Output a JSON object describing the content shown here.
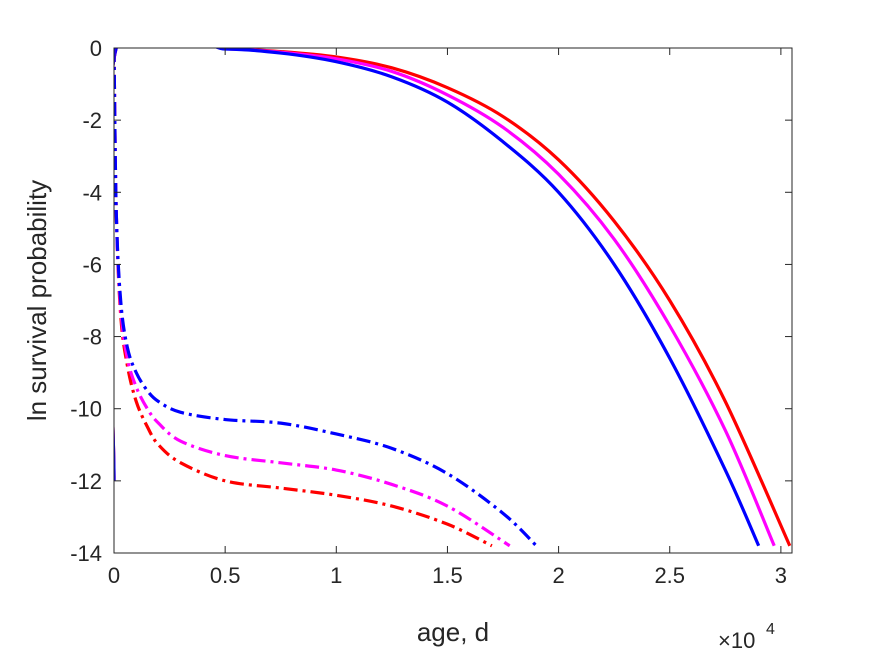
{
  "chart_data": {
    "type": "line",
    "title": "",
    "xlabel": "age, d",
    "ylabel": "ln survival probability",
    "x_exponent_label": "×10",
    "x_exponent_power": "4",
    "xlim": [
      0,
      3.05
    ],
    "ylim": [
      -14,
      0
    ],
    "x_scale_note": "x tick values are in units of 10^4 days",
    "xticks": [
      0,
      0.5,
      1,
      1.5,
      2,
      2.5,
      3
    ],
    "xtick_labels": [
      "0",
      "0.5",
      "1",
      "1.5",
      "2",
      "2.5",
      "3"
    ],
    "yticks": [
      0,
      -2,
      -4,
      -6,
      -8,
      -10,
      -12,
      -14
    ],
    "ytick_labels": [
      "0",
      "-2",
      "-4",
      "-6",
      "-8",
      "-10",
      "-12",
      "-14"
    ],
    "grid": false,
    "legend": false,
    "series": [
      {
        "color": "#ff0000",
        "style": "solid",
        "x": [
          0,
          0.01,
          0.5,
          0.75,
          1.0,
          1.25,
          1.5,
          1.75,
          2.0,
          2.25,
          2.5,
          2.75,
          3.04
        ],
        "y": [
          -12.0,
          0,
          -0.02,
          -0.1,
          -0.25,
          -0.55,
          -1.1,
          -1.9,
          -3.1,
          -4.8,
          -7.0,
          -9.8,
          -13.8
        ]
      },
      {
        "color": "#ff00ff",
        "style": "solid",
        "x": [
          0,
          0.01,
          0.5,
          0.75,
          1.0,
          1.25,
          1.5,
          1.75,
          2.0,
          2.25,
          2.5,
          2.75,
          2.97
        ],
        "y": [
          -12.0,
          0,
          -0.02,
          -0.12,
          -0.3,
          -0.65,
          -1.3,
          -2.2,
          -3.5,
          -5.3,
          -7.7,
          -10.6,
          -13.8
        ]
      },
      {
        "color": "#0000ff",
        "style": "solid",
        "x": [
          0,
          0.01,
          0.5,
          0.75,
          1.0,
          1.25,
          1.5,
          1.75,
          2.0,
          2.25,
          2.5,
          2.75,
          2.9
        ],
        "y": [
          -12.0,
          0,
          -0.03,
          -0.14,
          -0.38,
          -0.8,
          -1.5,
          -2.6,
          -4.0,
          -6.0,
          -8.6,
          -11.7,
          -13.8
        ]
      },
      {
        "color": "#ff0000",
        "style": "dashdot",
        "x": [
          0.0,
          0.01,
          0.03,
          0.06,
          0.1,
          0.15,
          0.2,
          0.3,
          0.5,
          0.75,
          1.0,
          1.25,
          1.5,
          1.7
        ],
        "y": [
          0,
          -4.5,
          -7.4,
          -8.8,
          -9.8,
          -10.5,
          -11.0,
          -11.5,
          -12.0,
          -12.2,
          -12.4,
          -12.7,
          -13.2,
          -13.8
        ]
      },
      {
        "color": "#ff00ff",
        "style": "dashdot",
        "x": [
          0.0,
          0.01,
          0.03,
          0.06,
          0.1,
          0.15,
          0.2,
          0.3,
          0.5,
          0.75,
          1.0,
          1.25,
          1.5,
          1.78
        ],
        "y": [
          0,
          -4.5,
          -7.2,
          -8.6,
          -9.4,
          -10.0,
          -10.4,
          -10.9,
          -11.3,
          -11.5,
          -11.7,
          -12.1,
          -12.7,
          -13.8
        ]
      },
      {
        "color": "#0000ff",
        "style": "dashdot",
        "x": [
          0.0,
          0.01,
          0.03,
          0.06,
          0.1,
          0.15,
          0.2,
          0.3,
          0.5,
          0.75,
          1.0,
          1.25,
          1.5,
          1.75,
          1.9
        ],
        "y": [
          0,
          -4.5,
          -7.0,
          -8.3,
          -9.0,
          -9.5,
          -9.8,
          -10.1,
          -10.3,
          -10.4,
          -10.7,
          -11.1,
          -11.8,
          -12.9,
          -13.8
        ]
      }
    ]
  }
}
